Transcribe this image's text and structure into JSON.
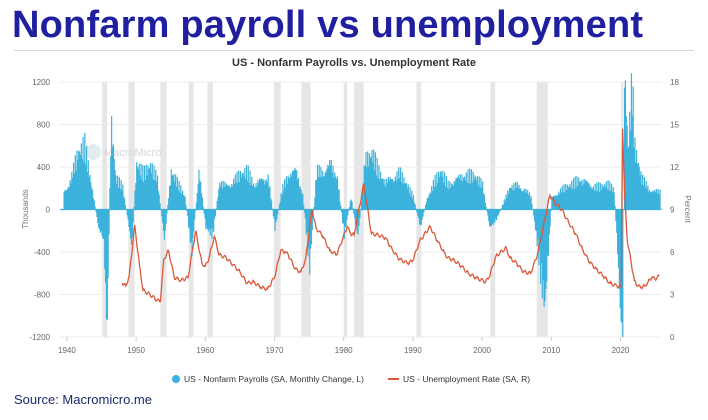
{
  "headline": "Nonfarm payroll vs unemployment",
  "source": "Source: Macromicro.me",
  "watermark": "MacroMicro",
  "chart_data": {
    "type": "bar+line",
    "title": "US - Nonfarm Payrolls vs. Unemployment Rate",
    "ylabel_left": "Thousands",
    "ylabel_right": "Percent",
    "ylim_left": [
      -1200,
      1200
    ],
    "ylim_right": [
      0,
      18
    ],
    "yticks_left": [
      "1200",
      "800",
      "400",
      "0",
      "-400",
      "-800",
      "-1200"
    ],
    "yticks_right": [
      "18",
      "15",
      "12",
      "9",
      "6",
      "3",
      "0"
    ],
    "xticks": [
      "1940",
      "1950",
      "1960",
      "1970",
      "1980",
      "1990",
      "2000",
      "2010",
      "2020"
    ],
    "xlim": [
      1939,
      2026
    ],
    "grid": "horizontal",
    "legend_position": "bottom",
    "colors": {
      "payrolls": "#3bb2dc",
      "unemployment": "#d9593a",
      "recession": "#e6e6e6"
    },
    "recessions": [
      [
        1945.1,
        1945.8
      ],
      [
        1948.9,
        1949.8
      ],
      [
        1953.5,
        1954.4
      ],
      [
        1957.6,
        1958.3
      ],
      [
        1960.3,
        1961.1
      ],
      [
        1969.9,
        1970.9
      ],
      [
        1973.9,
        1975.2
      ],
      [
        1980.0,
        1980.5
      ],
      [
        1981.5,
        1982.9
      ],
      [
        1990.5,
        1991.2
      ],
      [
        2001.2,
        2001.9
      ],
      [
        2007.9,
        2009.5
      ],
      [
        2020.1,
        2020.4
      ]
    ],
    "series": [
      {
        "name": "US - Nonfarm Payrolls (SA, Monthly Change, L)",
        "kind": "bar",
        "axis": "left",
        "points": [
          [
            1939.5,
            150
          ],
          [
            1940.5,
            250
          ],
          [
            1941.5,
            450
          ],
          [
            1942.5,
            500
          ],
          [
            1943.5,
            200
          ],
          [
            1944.5,
            -150
          ],
          [
            1945.3,
            -300
          ],
          [
            1945.7,
            -1200
          ],
          [
            1946.3,
            700
          ],
          [
            1947,
            250
          ],
          [
            1948,
            180
          ],
          [
            1949.3,
            -300
          ],
          [
            1950,
            400
          ],
          [
            1951,
            280
          ],
          [
            1952,
            350
          ],
          [
            1953,
            250
          ],
          [
            1954,
            -250
          ],
          [
            1955,
            320
          ],
          [
            1956,
            200
          ],
          [
            1957,
            100
          ],
          [
            1958,
            -350
          ],
          [
            1959,
            320
          ],
          [
            1960,
            -150
          ],
          [
            1961,
            -200
          ],
          [
            1962,
            220
          ],
          [
            1963,
            200
          ],
          [
            1964,
            240
          ],
          [
            1965,
            280
          ],
          [
            1966,
            300
          ],
          [
            1967,
            200
          ],
          [
            1968,
            250
          ],
          [
            1969,
            270
          ],
          [
            1970,
            -150
          ],
          [
            1971,
            150
          ],
          [
            1972,
            300
          ],
          [
            1973,
            330
          ],
          [
            1974,
            120
          ],
          [
            1975,
            -450
          ],
          [
            1976,
            300
          ],
          [
            1977,
            330
          ],
          [
            1978,
            380
          ],
          [
            1979,
            250
          ],
          [
            1980,
            -200
          ],
          [
            1981,
            100
          ],
          [
            1982,
            -250
          ],
          [
            1983,
            400
          ],
          [
            1984,
            450
          ],
          [
            1985,
            300
          ],
          [
            1986,
            220
          ],
          [
            1987,
            280
          ],
          [
            1988,
            300
          ],
          [
            1989,
            200
          ],
          [
            1990,
            100
          ],
          [
            1991,
            -150
          ],
          [
            1992,
            100
          ],
          [
            1993,
            220
          ],
          [
            1994,
            300
          ],
          [
            1995,
            200
          ],
          [
            1996,
            250
          ],
          [
            1997,
            280
          ],
          [
            1998,
            270
          ],
          [
            1999,
            260
          ],
          [
            2000,
            200
          ],
          [
            2001,
            -150
          ],
          [
            2002,
            -80
          ],
          [
            2003,
            50
          ],
          [
            2004,
            180
          ],
          [
            2005,
            200
          ],
          [
            2006,
            180
          ],
          [
            2007,
            100
          ],
          [
            2008,
            -300
          ],
          [
            2009,
            -800
          ],
          [
            2010,
            100
          ],
          [
            2011,
            150
          ],
          [
            2012,
            180
          ],
          [
            2013,
            200
          ],
          [
            2014,
            250
          ],
          [
            2015,
            230
          ],
          [
            2016,
            190
          ],
          [
            2017,
            180
          ],
          [
            2018,
            200
          ],
          [
            2019,
            170
          ],
          [
            2020.25,
            -1200
          ],
          [
            2020.5,
            1200
          ],
          [
            2020.9,
            700
          ],
          [
            2021,
            500
          ],
          [
            2021.6,
            1000
          ],
          [
            2022,
            480
          ],
          [
            2023,
            250
          ],
          [
            2024,
            180
          ],
          [
            2025,
            150
          ]
        ]
      },
      {
        "name": "US - Unemployment Rate (SA, R)",
        "kind": "line",
        "axis": "right",
        "points": [
          [
            1948,
            3.8
          ],
          [
            1948.5,
            3.6
          ],
          [
            1949,
            4.3
          ],
          [
            1949.8,
            7.9
          ],
          [
            1950.5,
            5.0
          ],
          [
            1951,
            3.3
          ],
          [
            1952,
            3.0
          ],
          [
            1953,
            2.6
          ],
          [
            1953.5,
            2.5
          ],
          [
            1954,
            5.5
          ],
          [
            1954.7,
            6.1
          ],
          [
            1955.5,
            4.2
          ],
          [
            1956.5,
            4.0
          ],
          [
            1957.5,
            4.2
          ],
          [
            1958.6,
            7.5
          ],
          [
            1959.5,
            5.2
          ],
          [
            1960,
            5.0
          ],
          [
            1960.5,
            5.5
          ],
          [
            1961.3,
            7.1
          ],
          [
            1962,
            5.8
          ],
          [
            1963,
            5.6
          ],
          [
            1964,
            5.1
          ],
          [
            1965,
            4.6
          ],
          [
            1966,
            3.8
          ],
          [
            1967,
            3.9
          ],
          [
            1968,
            3.5
          ],
          [
            1969,
            3.4
          ],
          [
            1970,
            4.2
          ],
          [
            1970.9,
            6.1
          ],
          [
            1971.5,
            6.0
          ],
          [
            1972,
            5.8
          ],
          [
            1973,
            4.8
          ],
          [
            1973.8,
            4.6
          ],
          [
            1974.5,
            5.5
          ],
          [
            1975.4,
            9.0
          ],
          [
            1976,
            7.7
          ],
          [
            1977,
            7.1
          ],
          [
            1978,
            6.1
          ],
          [
            1979,
            5.8
          ],
          [
            1980.5,
            7.8
          ],
          [
            1981,
            7.3
          ],
          [
            1981.5,
            7.2
          ],
          [
            1982.9,
            10.8
          ],
          [
            1984,
            7.3
          ],
          [
            1985,
            7.2
          ],
          [
            1986,
            7.0
          ],
          [
            1987,
            6.2
          ],
          [
            1988,
            5.5
          ],
          [
            1989.3,
            5.2
          ],
          [
            1990,
            5.4
          ],
          [
            1991,
            6.8
          ],
          [
            1992.5,
            7.8
          ],
          [
            1993.5,
            6.8
          ],
          [
            1994.5,
            6.0
          ],
          [
            1995,
            5.6
          ],
          [
            1996,
            5.4
          ],
          [
            1997,
            5.0
          ],
          [
            1998,
            4.5
          ],
          [
            1999,
            4.2
          ],
          [
            2000.5,
            3.9
          ],
          [
            2001,
            4.2
          ],
          [
            2002,
            5.7
          ],
          [
            2003.5,
            6.3
          ],
          [
            2004,
            5.6
          ],
          [
            2005,
            5.2
          ],
          [
            2006,
            4.6
          ],
          [
            2007,
            4.5
          ],
          [
            2008,
            5.8
          ],
          [
            2009.8,
            10.0
          ],
          [
            2010.5,
            9.5
          ],
          [
            2011.5,
            9.0
          ],
          [
            2012.5,
            8.1
          ],
          [
            2013.5,
            7.3
          ],
          [
            2014.5,
            6.2
          ],
          [
            2015.5,
            5.3
          ],
          [
            2016.5,
            4.8
          ],
          [
            2017.5,
            4.3
          ],
          [
            2018.5,
            3.8
          ],
          [
            2019.5,
            3.6
          ],
          [
            2020.1,
            3.5
          ],
          [
            2020.3,
            14.7
          ],
          [
            2020.6,
            10.2
          ],
          [
            2021,
            6.7
          ],
          [
            2021.5,
            5.4
          ],
          [
            2022,
            4.0
          ],
          [
            2022.5,
            3.6
          ],
          [
            2023,
            3.5
          ],
          [
            2023.5,
            3.6
          ],
          [
            2024,
            3.9
          ],
          [
            2024.5,
            4.2
          ],
          [
            2025,
            4.1
          ],
          [
            2025.6,
            4.3
          ]
        ]
      }
    ]
  }
}
